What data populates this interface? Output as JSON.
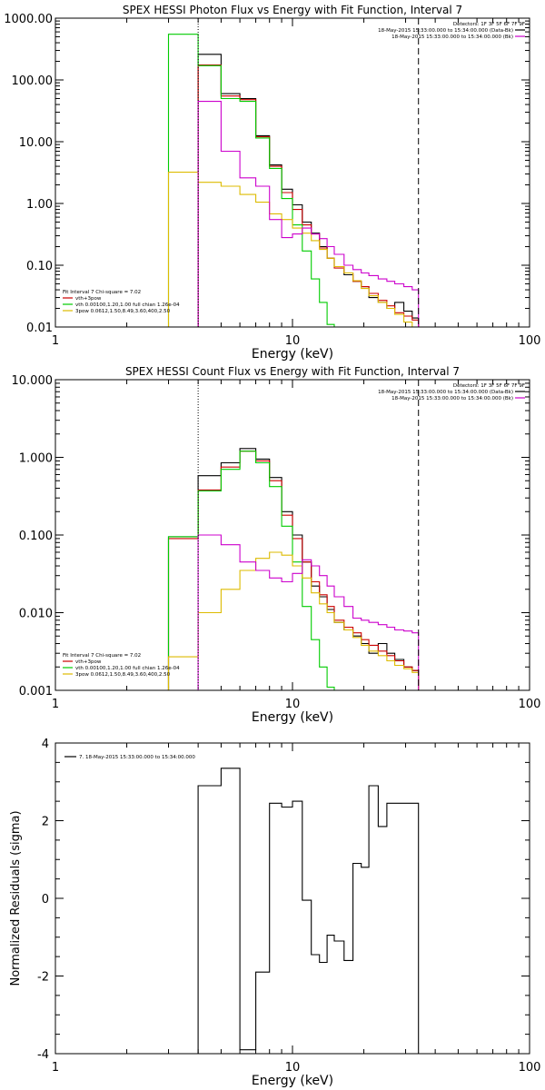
{
  "chart_data": [
    {
      "type": "line",
      "title": "SPEX HESSI Photon Flux vs Energy with Fit Function, Interval 7",
      "xlabel": "Energy (keV)",
      "ylabel": "",
      "xscale": "log",
      "yscale": "log",
      "xlim": [
        1,
        100
      ],
      "ylim": [
        0.01,
        1000
      ],
      "x_tick_labels": [
        "1",
        "10",
        "100"
      ],
      "y_tick_labels": [
        "0.01",
        "0.10",
        "1.00",
        "10.00",
        "100.00",
        "1000.00"
      ],
      "legend_top_right": {
        "detectors": "Detectors: 1F 3F 5F 6F 7F 9F",
        "lines": [
          "18-May-2015 15:33:00.000 to 15:34:00.000 (Data-Bk)",
          "18-May-2015 15:33:00.000 to 15:34:00.000 (Bk)"
        ],
        "colors": [
          "#000000",
          "#cc00cc"
        ]
      },
      "legend_bottom_left": {
        "header": "Fit Interval  7    Chi-square = 7.02",
        "lines": [
          "vth+3pow",
          "vth 0.00100,1.20,1.00  full chian 1.26e-04",
          "3pow 0.0612,1.50,8.49,3.60,400,2.50"
        ],
        "colors": [
          "#cc0000",
          "#00cc00",
          "#ddbb00"
        ]
      },
      "vlines": [
        {
          "x": 4.0,
          "style": "dotted",
          "color": "#000000"
        },
        {
          "x": 34.0,
          "style": "dashed",
          "color": "#000000"
        }
      ],
      "series": [
        {
          "color": "#000000",
          "edges": [
            4.0,
            5.0,
            6.0,
            7.0,
            8.0,
            9.0,
            10.0,
            11.0,
            12.0,
            13.0,
            14.0,
            15.0,
            16.5,
            18.0,
            19.5,
            21.0,
            23.0,
            25.0,
            27.0,
            29.5,
            32.0,
            34.0
          ],
          "values": [
            260,
            60,
            50,
            12.5,
            4.2,
            1.7,
            0.95,
            0.5,
            0.33,
            0.2,
            0.13,
            0.095,
            0.07,
            0.055,
            0.045,
            0.03,
            0.025,
            0.02,
            0.025,
            0.018,
            0.014
          ]
        },
        {
          "color": "#cc0000",
          "edges": [
            4.0,
            5.0,
            6.0,
            7.0,
            8.0,
            9.0,
            10.0,
            11.0,
            12.0,
            13.0,
            14.0,
            15.0,
            16.5,
            18.0,
            19.5,
            21.0,
            23.0,
            25.0,
            27.0,
            29.5,
            32.0,
            34.0
          ],
          "values": [
            175,
            55,
            48,
            12,
            4.0,
            1.5,
            0.8,
            0.45,
            0.32,
            0.19,
            0.13,
            0.09,
            0.075,
            0.055,
            0.045,
            0.035,
            0.027,
            0.022,
            0.017,
            0.015,
            0.013
          ]
        },
        {
          "color": "#00cc00",
          "edges": [
            3.0,
            4.0,
            5.0,
            6.0,
            7.0,
            8.0,
            9.0,
            10.0,
            11.0,
            12.0,
            13.0,
            14.0,
            15.0
          ],
          "values": [
            550,
            170,
            50,
            45,
            11.5,
            3.7,
            1.2,
            0.45,
            0.17,
            0.06,
            0.025,
            0.011
          ]
        },
        {
          "color": "#ddbb00",
          "edges": [
            3.0,
            4.0,
            5.0,
            6.0,
            7.0,
            8.0,
            9.0,
            10.0,
            11.0,
            12.0,
            13.0,
            14.0,
            15.0,
            16.5,
            18.0,
            19.5,
            21.0,
            23.0,
            25.0,
            27.0,
            29.5,
            32.0,
            34.0
          ],
          "values": [
            3.2,
            2.2,
            1.9,
            1.4,
            1.05,
            0.68,
            0.55,
            0.4,
            0.33,
            0.25,
            0.18,
            0.13,
            0.095,
            0.075,
            0.056,
            0.042,
            0.032,
            0.025,
            0.02,
            0.016,
            0.012,
            0.01
          ]
        },
        {
          "color": "#cc00cc",
          "edges": [
            4.0,
            5.0,
            6.0,
            7.0,
            8.0,
            9.0,
            10.0,
            11.0,
            12.0,
            13.0,
            14.0,
            15.0,
            16.5,
            18.0,
            19.5,
            21.0,
            23.0,
            25.0,
            27.0,
            29.5,
            32.0,
            34.0
          ],
          "values": [
            45,
            7.0,
            2.6,
            1.9,
            0.55,
            0.28,
            0.32,
            0.4,
            0.32,
            0.27,
            0.2,
            0.15,
            0.1,
            0.085,
            0.075,
            0.068,
            0.06,
            0.055,
            0.05,
            0.045,
            0.04
          ]
        }
      ]
    },
    {
      "type": "line",
      "title": "SPEX HESSI Count Flux vs Energy with Fit Function, Interval 7",
      "xlabel": "Energy (keV)",
      "ylabel": "",
      "xscale": "log",
      "yscale": "log",
      "xlim": [
        1,
        100
      ],
      "ylim": [
        0.001,
        10
      ],
      "x_tick_labels": [
        "1",
        "10",
        "100"
      ],
      "y_tick_labels": [
        "0.001",
        "0.010",
        "0.100",
        "1.000",
        "10.000"
      ],
      "legend_top_right": {
        "detectors": "Detectors: 1F 3F 5F 6F 7F 9F",
        "lines": [
          "18-May-2015 15:33:00.000 to 15:34:00.000 (Data-Bk)",
          "18-May-2015 15:33:00.000 to 15:34:00.000 (Bk)"
        ],
        "colors": [
          "#000000",
          "#cc00cc"
        ]
      },
      "legend_bottom_left": {
        "header": "Fit Interval  7    Chi-square = 7.02",
        "lines": [
          "vth+3pow",
          "vth 0.00100,1.20,1.00  full chian 1.26e-04",
          "3pow 0.0612,1.50,8.49,3.60,400,2.50"
        ],
        "colors": [
          "#cc0000",
          "#00cc00",
          "#ddbb00"
        ]
      },
      "vlines": [
        {
          "x": 4.0,
          "style": "dotted",
          "color": "#000000"
        },
        {
          "x": 34.0,
          "style": "dashed",
          "color": "#000000"
        }
      ],
      "series": [
        {
          "color": "#000000",
          "edges": [
            3.0,
            4.0,
            5.0,
            6.0,
            7.0,
            8.0,
            9.0,
            10.0,
            11.0,
            12.0,
            13.0,
            14.0,
            15.0,
            16.5,
            18.0,
            19.5,
            21.0,
            23.0,
            25.0,
            27.0,
            29.5,
            32.0,
            34.0
          ],
          "values": [
            0.095,
            0.58,
            0.85,
            1.3,
            0.95,
            0.55,
            0.2,
            0.1,
            0.045,
            0.022,
            0.016,
            0.011,
            0.0075,
            0.006,
            0.005,
            0.004,
            0.003,
            0.004,
            0.003,
            0.0025,
            0.002,
            0.0018
          ]
        },
        {
          "color": "#cc0000",
          "edges": [
            3.0,
            4.0,
            5.0,
            6.0,
            7.0,
            8.0,
            9.0,
            10.0,
            11.0,
            12.0,
            13.0,
            14.0,
            15.0,
            16.5,
            18.0,
            19.5,
            21.0,
            23.0,
            25.0,
            27.0,
            29.5,
            32.0,
            34.0
          ],
          "values": [
            0.09,
            0.38,
            0.75,
            1.2,
            0.9,
            0.5,
            0.18,
            0.09,
            0.045,
            0.025,
            0.017,
            0.012,
            0.008,
            0.0065,
            0.0055,
            0.0045,
            0.0038,
            0.0032,
            0.0028,
            0.0024,
            0.002,
            0.0018
          ]
        },
        {
          "color": "#00cc00",
          "edges": [
            3.0,
            4.0,
            5.0,
            6.0,
            7.0,
            8.0,
            9.0,
            10.0,
            11.0,
            12.0,
            13.0,
            14.0,
            15.0
          ],
          "values": [
            0.095,
            0.37,
            0.7,
            1.2,
            0.85,
            0.42,
            0.13,
            0.045,
            0.012,
            0.0045,
            0.002,
            0.0011
          ]
        },
        {
          "color": "#ddbb00",
          "edges": [
            3.0,
            4.0,
            5.0,
            6.0,
            7.0,
            8.0,
            9.0,
            10.0,
            11.0,
            12.0,
            13.0,
            14.0,
            15.0,
            16.5,
            18.0,
            19.5,
            21.0,
            23.0,
            25.0,
            27.0,
            29.5,
            32.0,
            34.0
          ],
          "values": [
            0.0027,
            0.01,
            0.02,
            0.035,
            0.05,
            0.06,
            0.055,
            0.04,
            0.028,
            0.018,
            0.013,
            0.01,
            0.0075,
            0.006,
            0.0048,
            0.0038,
            0.0032,
            0.0028,
            0.0024,
            0.0021,
            0.0019,
            0.0017
          ]
        },
        {
          "color": "#cc00cc",
          "edges": [
            4.0,
            5.0,
            6.0,
            7.0,
            8.0,
            9.0,
            10.0,
            11.0,
            12.0,
            13.0,
            14.0,
            15.0,
            16.5,
            18.0,
            19.5,
            21.0,
            23.0,
            25.0,
            27.0,
            29.5,
            32.0,
            34.0
          ],
          "values": [
            0.1,
            0.075,
            0.045,
            0.035,
            0.028,
            0.025,
            0.032,
            0.048,
            0.04,
            0.03,
            0.022,
            0.016,
            0.012,
            0.0085,
            0.008,
            0.0075,
            0.007,
            0.0065,
            0.006,
            0.0058,
            0.0055
          ]
        }
      ]
    },
    {
      "type": "line",
      "title": "",
      "xlabel": "Energy (keV)",
      "ylabel": "Normalized Residuals (sigma)",
      "xscale": "log",
      "yscale": "linear",
      "xlim": [
        1,
        100
      ],
      "ylim": [
        -4,
        4
      ],
      "x_tick_labels": [
        "1",
        "10",
        "100"
      ],
      "y_tick_labels": [
        "-4",
        "-2",
        "0",
        "2",
        "4"
      ],
      "legend_top_left": {
        "lines": [
          "7. 18-May-2015 15:33:00.000 to 15:34:00.000"
        ],
        "colors": [
          "#000000"
        ]
      },
      "series": [
        {
          "color": "#000000",
          "edges": [
            4.0,
            5.0,
            6.0,
            7.0,
            8.0,
            9.0,
            10.0,
            11.0,
            12.0,
            13.0,
            14.0,
            15.0,
            16.5,
            18.0,
            19.5,
            21.0,
            23.0,
            25.0,
            27.0,
            29.5,
            32.0,
            34.0
          ],
          "values": [
            2.9,
            3.35,
            -3.9,
            -1.9,
            2.45,
            2.35,
            2.5,
            -0.05,
            -1.45,
            -1.65,
            -0.95,
            -1.1,
            -1.6,
            0.9,
            0.8,
            2.9,
            1.85,
            2.45,
            2.45,
            2.45,
            2.45
          ]
        }
      ]
    }
  ]
}
